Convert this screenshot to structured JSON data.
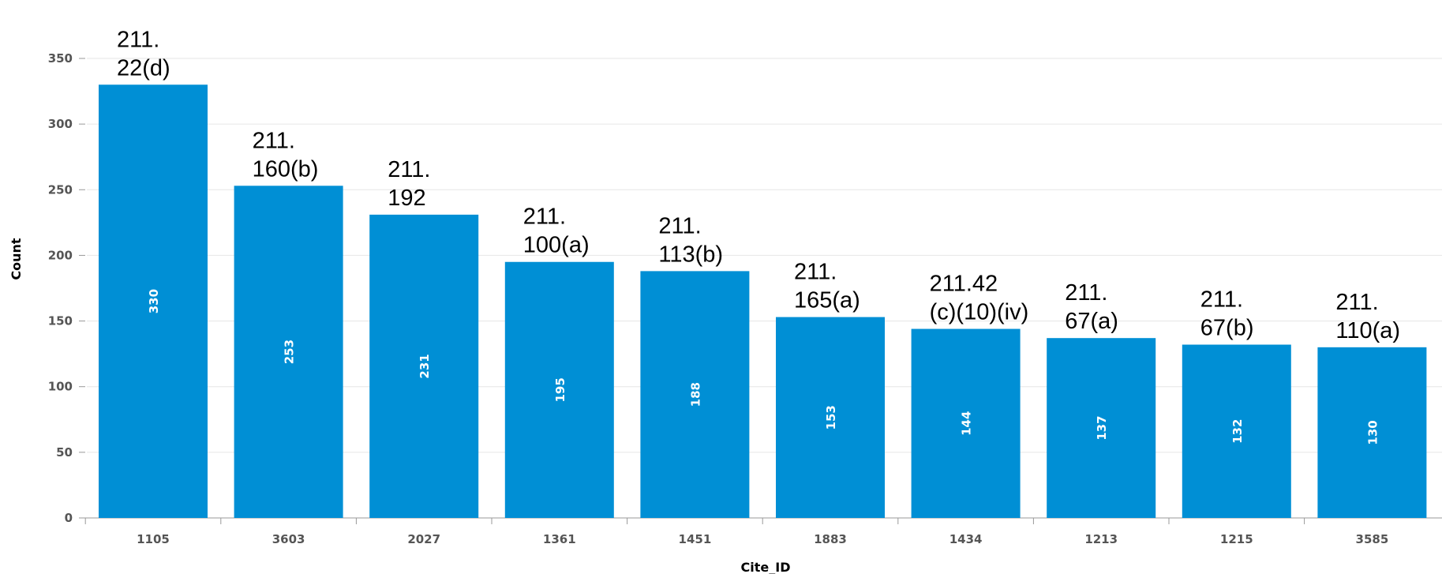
{
  "chart_data": {
    "type": "bar",
    "title": "",
    "xlabel": "Cite_ID",
    "ylabel": "Count",
    "ylim": [
      0,
      350
    ],
    "yticks": [
      0,
      50,
      100,
      150,
      200,
      250,
      300,
      350
    ],
    "grid": true,
    "legend": "none",
    "categories": [
      "1105",
      "3603",
      "2027",
      "1361",
      "1451",
      "1883",
      "1434",
      "1213",
      "1215",
      "3585"
    ],
    "values": [
      330,
      253,
      231,
      195,
      188,
      153,
      144,
      137,
      132,
      130
    ],
    "annotations": [
      [
        "211.",
        "22(d)"
      ],
      [
        "211.",
        "160(b)"
      ],
      [
        "211.",
        "192"
      ],
      [
        "211.",
        "100(a)"
      ],
      [
        "211.",
        "113(b)"
      ],
      [
        "211.",
        "165(a)"
      ],
      [
        "211.42",
        "(c)(10)(iv)"
      ],
      [
        "211.",
        "67(a)"
      ],
      [
        "211.",
        "67(b)"
      ],
      [
        "211.",
        "110(a)"
      ]
    ],
    "colors": {
      "bar": "#008fd5",
      "grid": "#e6e6e6",
      "axis": "#999999"
    }
  }
}
